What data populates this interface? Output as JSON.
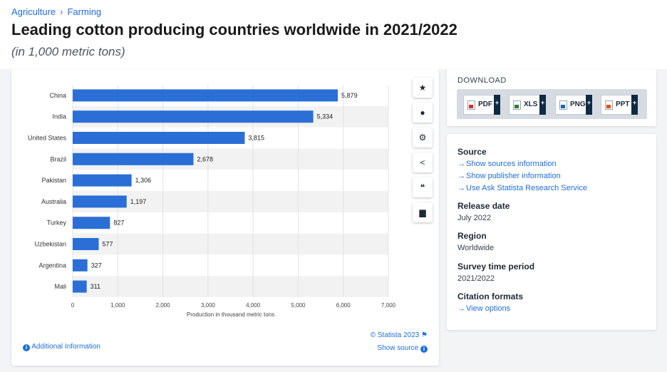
{
  "breadcrumb": {
    "items": [
      "Agriculture",
      "Farming"
    ],
    "separator": "›"
  },
  "title": "Leading cotton producing countries worldwide in 2021/2022",
  "subtitle": "(in 1,000 metric tons)",
  "chart_data": {
    "type": "bar",
    "orientation": "horizontal",
    "categories": [
      "China",
      "India",
      "United States",
      "Brazil",
      "Pakistan",
      "Australia",
      "Turkey",
      "Uzbekistan",
      "Argentina",
      "Mali"
    ],
    "values": [
      5879,
      5334,
      3815,
      2678,
      1306,
      1197,
      827,
      577,
      327,
      311
    ],
    "value_labels": [
      "5,879",
      "5,334",
      "3,815",
      "2,678",
      "1,306",
      "1,197",
      "827",
      "577",
      "327",
      "311"
    ],
    "xticks": [
      0,
      1000,
      2000,
      3000,
      4000,
      5000,
      6000,
      7000
    ],
    "xtick_labels": [
      "0",
      "1,000",
      "2,000",
      "3,000",
      "4,000",
      "5,000",
      "6,000",
      "7,000"
    ],
    "xlim": [
      0,
      7000
    ],
    "xlabel": "Production in thousand metric tons",
    "ylabel": "",
    "grid": true,
    "bar_color": "#2b6fd6"
  },
  "toolbar": {
    "icons": [
      "star-icon",
      "bell-icon",
      "gear-icon",
      "share-icon",
      "quote-icon",
      "print-icon"
    ],
    "glyphs": [
      "★",
      "●",
      "⚙",
      "<",
      "❝",
      "▆"
    ]
  },
  "chart_footer": {
    "credit": "© Statista 2023",
    "show_source": "Show source",
    "additional_info": "Additional Information"
  },
  "download": {
    "title": "DOWNLOAD",
    "buttons": [
      {
        "label": "PDF",
        "icon": "pdf-icon",
        "color": "#d32f2f"
      },
      {
        "label": "XLS",
        "icon": "xls-icon",
        "color": "#2e7d32"
      },
      {
        "label": "PNG",
        "icon": "png-icon",
        "color": "#1565c0"
      },
      {
        "label": "PPT",
        "icon": "ppt-icon",
        "color": "#e65100"
      }
    ],
    "plus": "+"
  },
  "info": {
    "source_heading": "Source",
    "source_links": [
      "Show sources information",
      "Show publisher information",
      "Use Ask Statista Research Service"
    ],
    "release_heading": "Release date",
    "release_value": "July 2022",
    "region_heading": "Region",
    "region_value": "Worldwide",
    "period_heading": "Survey time period",
    "period_value": "2021/2022",
    "citation_heading": "Citation formats",
    "citation_link": "View options"
  },
  "colors": {
    "accent": "#1f6ed8",
    "bar": "#2b6fd6",
    "navy": "#0f2a43"
  }
}
